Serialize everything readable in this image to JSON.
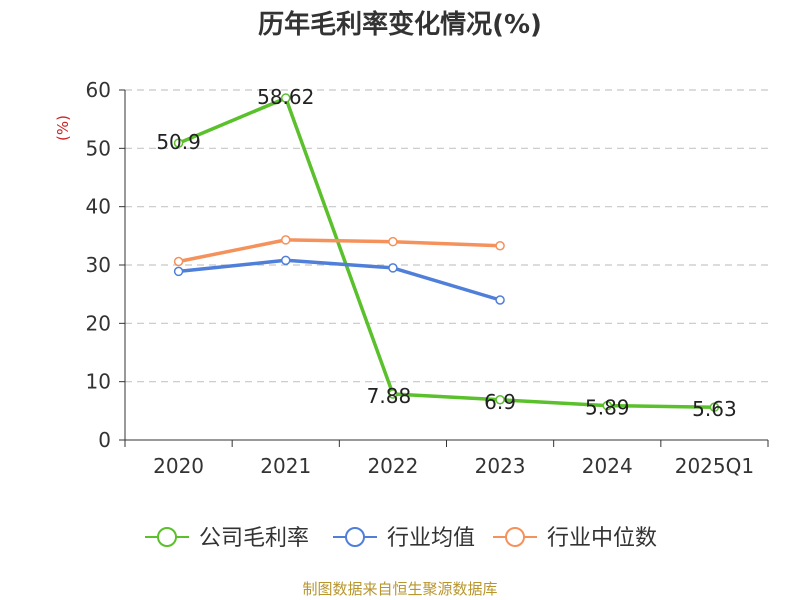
{
  "chart_data": {
    "type": "line",
    "title": "历年毛利率变化情况(%)",
    "ylabel": "(%)",
    "xlabel": "",
    "categories": [
      "2020",
      "2021",
      "2022",
      "2023",
      "2024",
      "2025Q1"
    ],
    "ylim": [
      0,
      60
    ],
    "yticks": [
      0,
      10,
      20,
      30,
      40,
      50,
      60
    ],
    "grid": true,
    "legend_position": "bottom",
    "series": [
      {
        "name": "公司毛利率",
        "color": "#5ac02b",
        "values": [
          50.9,
          58.62,
          7.88,
          6.9,
          5.89,
          5.63
        ],
        "labels": [
          "50.9",
          "58.62",
          "7.88",
          "6.9",
          "5.89",
          "5.63"
        ]
      },
      {
        "name": "行业均值",
        "color": "#4f7fd9",
        "values": [
          28.9,
          30.8,
          29.5,
          24.0,
          null,
          null
        ],
        "labels": null
      },
      {
        "name": "行业中位数",
        "color": "#f5915b",
        "values": [
          30.6,
          34.3,
          34.0,
          33.3,
          null,
          null
        ],
        "labels": null
      }
    ]
  },
  "source": "制图数据来自恒生聚源数据库"
}
